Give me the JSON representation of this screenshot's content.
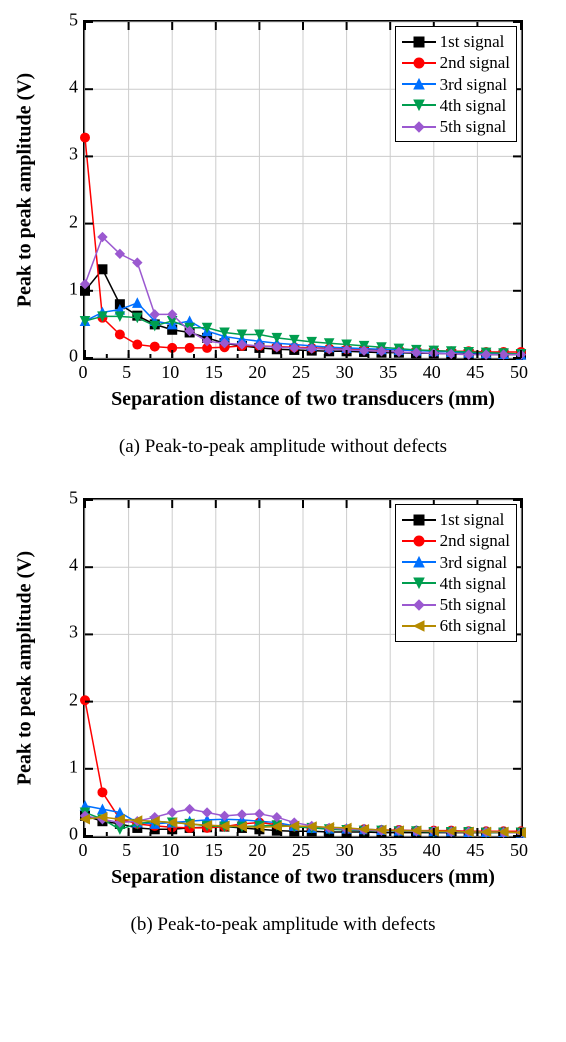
{
  "charts": [
    {
      "id": "chartA",
      "caption": "(a) Peak-to-peak amplitude without defects",
      "xlabel": "Separation distance of two transducers (mm)",
      "ylabel": "Peak to peak amplitude (V)",
      "xlim": [
        0,
        50
      ],
      "ylim": [
        0,
        5
      ],
      "xtick_step": 5,
      "ytick_step": 1,
      "xtick_minor": 2.5,
      "background": "#ffffff",
      "grid_color": "#cccccc",
      "line_width": 1.5,
      "marker_size": 9,
      "label_fontsize": 20,
      "tick_fontsize": 18,
      "x_values": [
        0,
        2,
        4,
        6,
        8,
        10,
        12,
        14,
        16,
        18,
        20,
        22,
        24,
        26,
        28,
        30,
        32,
        34,
        36,
        38,
        40,
        42,
        44,
        46,
        48,
        50
      ],
      "series": [
        {
          "label": "1st signal",
          "color": "#000000",
          "marker": "square",
          "y": [
            1.0,
            1.32,
            0.8,
            0.63,
            0.5,
            0.42,
            0.38,
            0.3,
            0.22,
            0.18,
            0.15,
            0.13,
            0.12,
            0.11,
            0.1,
            0.1,
            0.09,
            0.08,
            0.08,
            0.07,
            0.07,
            0.06,
            0.06,
            0.05,
            0.05,
            0.05
          ]
        },
        {
          "label": "2nd signal",
          "color": "#ff0000",
          "marker": "circle",
          "y": [
            3.28,
            0.6,
            0.35,
            0.2,
            0.17,
            0.15,
            0.15,
            0.15,
            0.16,
            0.18,
            0.18,
            0.17,
            0.16,
            0.15,
            0.14,
            0.13,
            0.13,
            0.12,
            0.12,
            0.11,
            0.11,
            0.1,
            0.1,
            0.09,
            0.09,
            0.09
          ]
        },
        {
          "label": "3rd signal",
          "color": "#0070ff",
          "marker": "triangle-up",
          "y": [
            0.55,
            0.68,
            0.72,
            0.82,
            0.55,
            0.5,
            0.55,
            0.4,
            0.32,
            0.28,
            0.25,
            0.22,
            0.2,
            0.18,
            0.16,
            0.15,
            0.14,
            0.13,
            0.12,
            0.11,
            0.1,
            0.09,
            0.08,
            0.07,
            0.06,
            0.05
          ]
        },
        {
          "label": "4th signal",
          "color": "#009e4f",
          "marker": "triangle-down",
          "y": [
            0.55,
            0.62,
            0.62,
            0.6,
            0.48,
            0.55,
            0.45,
            0.45,
            0.38,
            0.35,
            0.35,
            0.3,
            0.27,
            0.24,
            0.22,
            0.2,
            0.18,
            0.16,
            0.14,
            0.12,
            0.11,
            0.1,
            0.09,
            0.08,
            0.07,
            0.06
          ]
        },
        {
          "label": "5th signal",
          "color": "#9b59d0",
          "marker": "diamond",
          "y": [
            1.1,
            1.8,
            1.55,
            1.42,
            0.65,
            0.65,
            0.4,
            0.25,
            0.22,
            0.2,
            0.18,
            0.16,
            0.15,
            0.14,
            0.13,
            0.12,
            0.11,
            0.1,
            0.09,
            0.08,
            0.07,
            0.06,
            0.05,
            0.05,
            0.05,
            0.05
          ]
        }
      ]
    },
    {
      "id": "chartB",
      "caption": "(b) Peak-to-peak amplitude with defects",
      "xlabel": "Separation distance of two transducers (mm)",
      "ylabel": "Peak to peak amplitude (V)",
      "xlim": [
        0,
        50
      ],
      "ylim": [
        0,
        5
      ],
      "xtick_step": 5,
      "ytick_step": 1,
      "xtick_minor": 2.5,
      "background": "#ffffff",
      "grid_color": "#cccccc",
      "line_width": 1.5,
      "marker_size": 9,
      "label_fontsize": 20,
      "tick_fontsize": 18,
      "x_values": [
        0,
        2,
        4,
        6,
        8,
        10,
        12,
        14,
        16,
        18,
        20,
        22,
        24,
        26,
        28,
        30,
        32,
        34,
        36,
        38,
        40,
        42,
        44,
        46,
        48,
        50
      ],
      "series": [
        {
          "label": "1st signal",
          "color": "#000000",
          "marker": "square",
          "y": [
            0.3,
            0.22,
            0.18,
            0.12,
            0.1,
            0.1,
            0.12,
            0.13,
            0.14,
            0.12,
            0.1,
            0.08,
            0.07,
            0.07,
            0.06,
            0.06,
            0.06,
            0.05,
            0.05,
            0.05,
            0.05,
            0.05,
            0.05,
            0.05,
            0.05,
            0.05
          ]
        },
        {
          "label": "2nd signal",
          "color": "#ff0000",
          "marker": "circle",
          "y": [
            2.02,
            0.65,
            0.25,
            0.18,
            0.15,
            0.13,
            0.12,
            0.12,
            0.14,
            0.18,
            0.2,
            0.17,
            0.14,
            0.12,
            0.11,
            0.1,
            0.1,
            0.09,
            0.09,
            0.08,
            0.08,
            0.08,
            0.07,
            0.07,
            0.07,
            0.07
          ]
        },
        {
          "label": "3rd signal",
          "color": "#0070ff",
          "marker": "triangle-up",
          "y": [
            0.45,
            0.4,
            0.35,
            0.2,
            0.18,
            0.2,
            0.22,
            0.24,
            0.25,
            0.24,
            0.22,
            0.2,
            0.15,
            0.12,
            0.11,
            0.11,
            0.1,
            0.09,
            0.08,
            0.08,
            0.07,
            0.07,
            0.06,
            0.06,
            0.06,
            0.05
          ]
        },
        {
          "label": "4th signal",
          "color": "#009e4f",
          "marker": "triangle-down",
          "y": [
            0.35,
            0.25,
            0.1,
            0.18,
            0.22,
            0.2,
            0.18,
            0.15,
            0.14,
            0.14,
            0.15,
            0.16,
            0.14,
            0.12,
            0.1,
            0.09,
            0.08,
            0.08,
            0.07,
            0.07,
            0.06,
            0.06,
            0.06,
            0.05,
            0.05,
            0.05
          ]
        },
        {
          "label": "5th signal",
          "color": "#9b59d0",
          "marker": "diamond",
          "y": [
            0.3,
            0.25,
            0.2,
            0.22,
            0.28,
            0.35,
            0.4,
            0.35,
            0.3,
            0.32,
            0.33,
            0.28,
            0.2,
            0.15,
            0.12,
            0.1,
            0.09,
            0.08,
            0.08,
            0.07,
            0.07,
            0.06,
            0.06,
            0.06,
            0.05,
            0.05
          ]
        },
        {
          "label": "6th signal",
          "color": "#b58b00",
          "marker": "triangle-left",
          "y": [
            0.25,
            0.28,
            0.25,
            0.23,
            0.22,
            0.2,
            0.18,
            0.16,
            0.15,
            0.14,
            0.13,
            0.14,
            0.15,
            0.14,
            0.13,
            0.12,
            0.1,
            0.09,
            0.08,
            0.08,
            0.07,
            0.07,
            0.06,
            0.06,
            0.06,
            0.05
          ]
        }
      ]
    }
  ]
}
